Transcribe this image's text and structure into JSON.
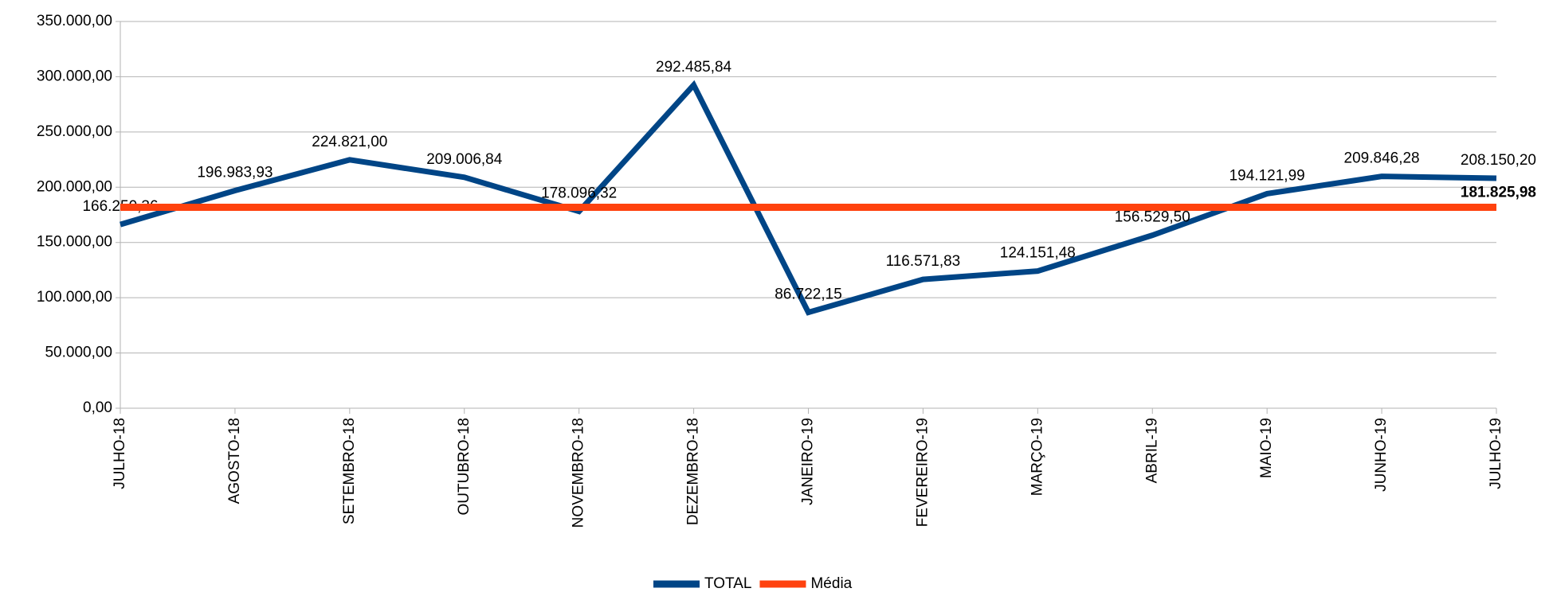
{
  "chart_data": {
    "type": "line",
    "categories": [
      "JULHO-18",
      "AGOSTO-18",
      "SETEMBRO-18",
      "OUTUBRO-18",
      "NOVEMBRO-18",
      "DEZEMBRO-18",
      "JANEIRO-19",
      "FEVEREIRO-19",
      "MARÇO-19",
      "ABRIL-19",
      "MAIO-19",
      "JUNHO-19",
      "JULHO-19"
    ],
    "series": [
      {
        "name": "TOTAL",
        "color": "#004586",
        "values": [
          166250.36,
          196983.93,
          224821.0,
          209006.84,
          178096.32,
          292485.84,
          86722.15,
          116571.83,
          124151.48,
          156529.5,
          194121.99,
          209846.28,
          208150.2
        ],
        "value_labels": [
          "166.250,36",
          "196.983,93",
          "224.821,00",
          "209.006,84",
          "178.096,32",
          "292.485,84",
          "86.722,15",
          "116.571,83",
          "124.151,48",
          "156.529,50",
          "194.121,99",
          "209.846,28",
          "208.150,20"
        ]
      },
      {
        "name": "Média",
        "color": "#ff420e",
        "values": [
          181825.98,
          181825.98,
          181825.98,
          181825.98,
          181825.98,
          181825.98,
          181825.98,
          181825.98,
          181825.98,
          181825.98,
          181825.98,
          181825.98,
          181825.98
        ],
        "value_labels": [
          null,
          null,
          null,
          null,
          null,
          null,
          null,
          null,
          null,
          null,
          null,
          null,
          "181.825,98"
        ]
      }
    ],
    "ylim": [
      0,
      350000
    ],
    "yticks": [
      {
        "value": 0,
        "label": "0,00"
      },
      {
        "value": 50000,
        "label": "50.000,00"
      },
      {
        "value": 100000,
        "label": "100.000,00"
      },
      {
        "value": 150000,
        "label": "150.000,00"
      },
      {
        "value": 200000,
        "label": "200.000,00"
      },
      {
        "value": 250000,
        "label": "250.000,00"
      },
      {
        "value": 300000,
        "label": "300.000,00"
      },
      {
        "value": 350000,
        "label": "350.000,00"
      }
    ],
    "grid": true,
    "legend": "bottom"
  }
}
